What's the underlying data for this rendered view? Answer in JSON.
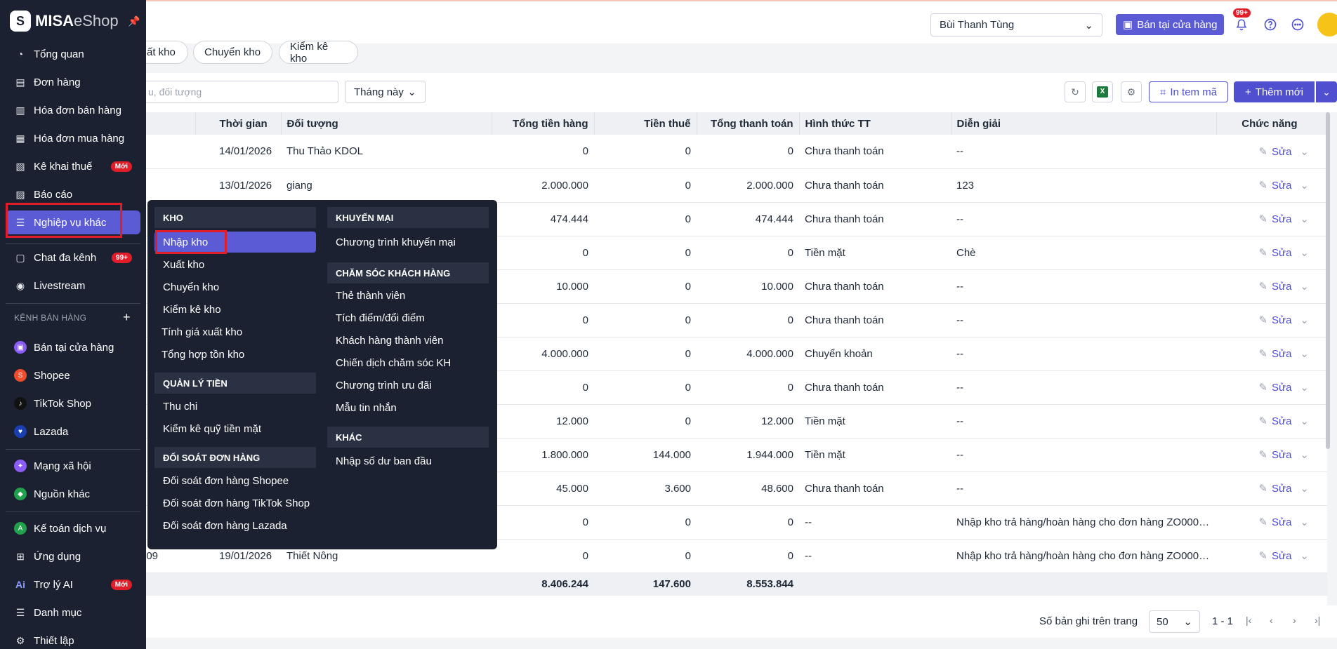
{
  "app": {
    "logo_main": "MISA",
    "logo_sub": "eShop"
  },
  "header": {
    "user": "Bùi Thanh Tùng",
    "pos_button": "Bán tại cửa hàng",
    "notif_count": "99+"
  },
  "tabs": [
    "ất kho",
    "Chuyển kho",
    "Kiểm kê kho"
  ],
  "toolbar": {
    "search_placeholder": "u, đối tượng",
    "period": "Tháng này",
    "print_label": "In tem mã",
    "add_label": "Thêm mới"
  },
  "table": {
    "headers": [
      "Thời gian",
      "Đối tượng",
      "Tổng tiền hàng",
      "Tiền thuế",
      "Tổng thanh toán",
      "Hình thức TT",
      "Diễn giải",
      "Chức năng"
    ],
    "action_label": "Sửa",
    "rows": [
      {
        "code": "",
        "time": "14/01/2026",
        "subject": "Thu Thảo KDOL",
        "goods": "0",
        "tax": "0",
        "total": "0",
        "method": "Chưa thanh toán",
        "note": "--"
      },
      {
        "code": "",
        "time": "13/01/2026",
        "subject": "giang",
        "goods": "2.000.000",
        "tax": "0",
        "total": "2.000.000",
        "method": "Chưa thanh toán",
        "note": "123"
      },
      {
        "code": "",
        "time": "",
        "subject": "",
        "goods": "474.444",
        "tax": "0",
        "total": "474.444",
        "method": "Chưa thanh toán",
        "note": "--"
      },
      {
        "code": "",
        "time": "",
        "subject": "",
        "goods": "0",
        "tax": "0",
        "total": "0",
        "method": "Tiền mặt",
        "note": "Chè"
      },
      {
        "code": "",
        "time": "",
        "subject": "",
        "goods": "10.000",
        "tax": "0",
        "total": "10.000",
        "method": "Chưa thanh toán",
        "note": "--"
      },
      {
        "code": "",
        "time": "",
        "subject": "",
        "goods": "0",
        "tax": "0",
        "total": "0",
        "method": "Chưa thanh toán",
        "note": "--"
      },
      {
        "code": "",
        "time": "",
        "subject": "",
        "goods": "4.000.000",
        "tax": "0",
        "total": "4.000.000",
        "method": "Chuyển khoản",
        "note": "--"
      },
      {
        "code": "",
        "time": "",
        "subject": "",
        "goods": "0",
        "tax": "0",
        "total": "0",
        "method": "Chưa thanh toán",
        "note": "--"
      },
      {
        "code": "",
        "time": "",
        "subject": "",
        "goods": "12.000",
        "tax": "0",
        "total": "12.000",
        "method": "Tiền mặt",
        "note": "--"
      },
      {
        "code": "",
        "time": "",
        "subject": "",
        "goods": "1.800.000",
        "tax": "144.000",
        "total": "1.944.000",
        "method": "Tiền mặt",
        "note": "--"
      },
      {
        "code": "",
        "time": "",
        "subject": "",
        "goods": "45.000",
        "tax": "3.600",
        "total": "48.600",
        "method": "Chưa thanh toán",
        "note": "--"
      },
      {
        "code": "",
        "time": "",
        "subject": "",
        "goods": "0",
        "tax": "0",
        "total": "0",
        "method": "--",
        "note": "Nhập kho trả hàng/hoàn hàng cho đơn hàng ZO0008..."
      },
      {
        "code": "009",
        "time": "19/01/2026",
        "subject": "Thiết Nông",
        "goods": "0",
        "tax": "0",
        "total": "0",
        "method": "--",
        "note": "Nhập kho trả hàng/hoàn hàng cho đơn hàng ZO0008..."
      }
    ],
    "sum": {
      "goods": "8.406.244",
      "tax": "147.600",
      "total": "8.553.844"
    }
  },
  "pager": {
    "label": "Số bản ghi trên trang",
    "size": "50",
    "range": "1 - 1"
  },
  "sidebar": {
    "items": [
      {
        "label": "Tổng quan",
        "icon": "gauge-icon"
      },
      {
        "label": "Đơn hàng",
        "icon": "order-icon"
      },
      {
        "label": "Hóa đơn bán hàng",
        "icon": "invoice-icon"
      },
      {
        "label": "Hóa đơn mua hàng",
        "icon": "purchase-icon"
      },
      {
        "label": "Kê khai thuế",
        "icon": "tax-icon",
        "badge": "Mới"
      },
      {
        "label": "Báo cáo",
        "icon": "report-icon"
      },
      {
        "label": "Nghiệp vụ khác",
        "icon": "list-icon"
      },
      {
        "label": "Chat đa kênh",
        "icon": "chat-icon",
        "badge": "99+"
      },
      {
        "label": "Livestream",
        "icon": "live-icon"
      }
    ],
    "section_label": "KÊNH BÁN HÀNG",
    "channels": [
      {
        "label": "Bán tại cửa hàng",
        "color": "#8b5cf6"
      },
      {
        "label": "Shopee",
        "color": "#ee4d2d"
      },
      {
        "label": "TikTok Shop",
        "color": "#111111"
      },
      {
        "label": "Lazada",
        "color": "#1a3fb0"
      }
    ],
    "other": [
      {
        "label": "Mạng xã hội",
        "color": "#8b5cf6"
      },
      {
        "label": "Nguồn khác",
        "color": "#22a04b"
      }
    ],
    "bottom": [
      {
        "label": "Kế toán dịch vụ",
        "icon": "accounting-icon"
      },
      {
        "label": "Ứng dụng",
        "icon": "apps-icon"
      },
      {
        "label": "Trợ lý AI",
        "icon": "ai-icon",
        "badge": "Mới"
      },
      {
        "label": "Danh mục",
        "icon": "menu-icon"
      },
      {
        "label": "Thiết lập",
        "icon": "settings-icon"
      }
    ]
  },
  "menu": {
    "col1": {
      "kho_head": "KHO",
      "kho": [
        "Nhập kho",
        "Xuất kho",
        "Chuyển kho",
        "Kiểm kê kho",
        "Tính giá xuất kho",
        "Tổng hợp tồn kho"
      ],
      "tien_head": "QUẢN LÝ TIỀN",
      "tien": [
        "Thu chi",
        "Kiểm kê quỹ tiền mặt"
      ],
      "doisoat_head": "ĐỐI SOÁT ĐƠN HÀNG",
      "doisoat": [
        "Đối soát đơn hàng Shopee",
        "Đối soát đơn hàng TikTok Shop",
        "Đối soát đơn hàng Lazada"
      ]
    },
    "col2": {
      "km_head": "KHUYẾN MẠI",
      "km": [
        "Chương trình khuyến mại"
      ],
      "cs_head": "CHĂM SÓC KHÁCH HÀNG",
      "cs": [
        "Thẻ thành viên",
        "Tích điểm/đổi điểm",
        "Khách hàng thành viên",
        "Chiến dịch chăm sóc KH",
        "Chương trình ưu đãi",
        "Mẫu tin nhắn"
      ],
      "khac_head": "KHÁC",
      "khac": [
        "Nhập số dư ban đầu"
      ]
    }
  }
}
